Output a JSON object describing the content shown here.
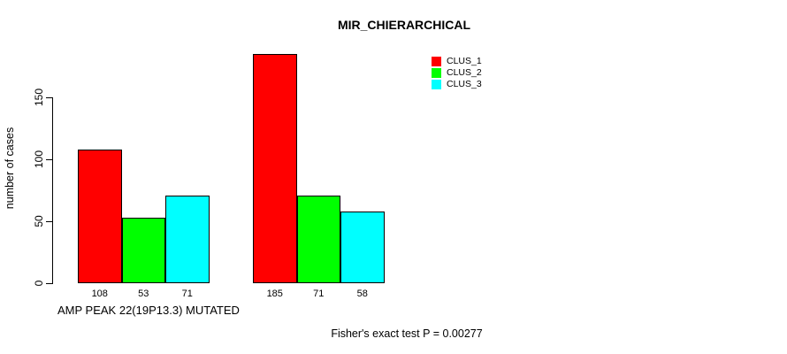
{
  "chart_data": {
    "type": "bar",
    "title": "MIR_CHIERARCHICAL",
    "ylabel": "number of cases",
    "xlabel": "AMP PEAK 22(19P13.3) MUTATED",
    "annotation": "Fisher's exact test P = 0.00277",
    "categories": [
      "AMP PEAK 22(19P13.3) MUTATED",
      ""
    ],
    "series": [
      {
        "name": "CLUS_1",
        "color": "#ff0000",
        "values": [
          108,
          185
        ]
      },
      {
        "name": "CLUS_2",
        "color": "#00ff00",
        "values": [
          53,
          71
        ]
      },
      {
        "name": "CLUS_3",
        "color": "#00ffff",
        "values": [
          71,
          58
        ]
      }
    ],
    "yticks": [
      0,
      50,
      100,
      150
    ],
    "ylim": [
      0,
      190
    ],
    "grid": false,
    "legend_position": "top-right",
    "bar_border_color": "#000000",
    "axis_color": "#000000",
    "text_color": "#000000",
    "background_color": "#ffffff"
  }
}
